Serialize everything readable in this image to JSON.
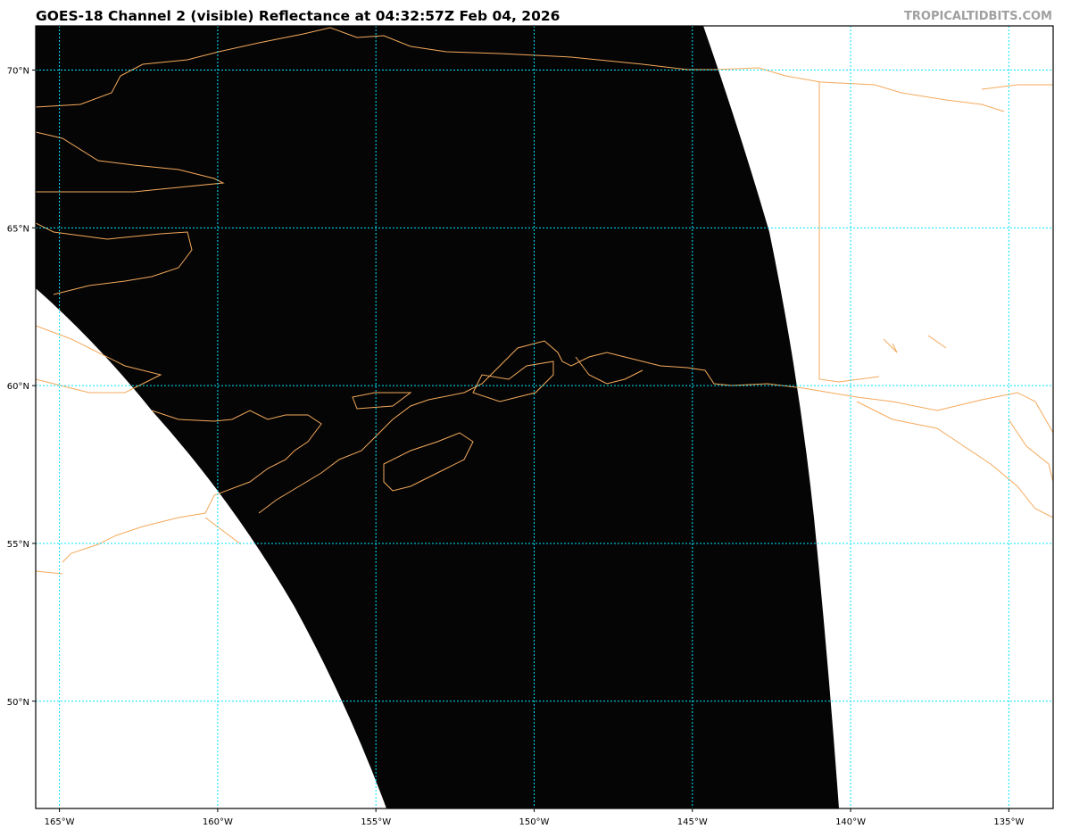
{
  "header": {
    "title": "GOES-18 Channel 2 (visible) Reflectance at 04:32:57Z Feb 04, 2026",
    "credit": "TROPICALTIDBITS.COM"
  },
  "map": {
    "projection": "equirectangular",
    "lon_range": [
      -165.75,
      -133.6
    ],
    "lat_range": [
      46.6,
      71.4
    ],
    "lon_ticks": [
      {
        "v": -165,
        "label": "165°W"
      },
      {
        "v": -160,
        "label": "160°W"
      },
      {
        "v": -155,
        "label": "155°W"
      },
      {
        "v": -150,
        "label": "150°W"
      },
      {
        "v": -145,
        "label": "145°W"
      },
      {
        "v": -140,
        "label": "140°W"
      },
      {
        "v": -135,
        "label": "135°W"
      }
    ],
    "lat_ticks": [
      {
        "v": 70,
        "label": "70°N"
      },
      {
        "v": 65,
        "label": "65°N"
      },
      {
        "v": 60,
        "label": "60°N"
      },
      {
        "v": 55,
        "label": "55°N"
      },
      {
        "v": 50,
        "label": "50°N"
      }
    ],
    "colors": {
      "imagery": "#000000",
      "no_data": "#ffffff",
      "coastline": "#f4a95c",
      "gridline": "#00e5ff"
    }
  }
}
